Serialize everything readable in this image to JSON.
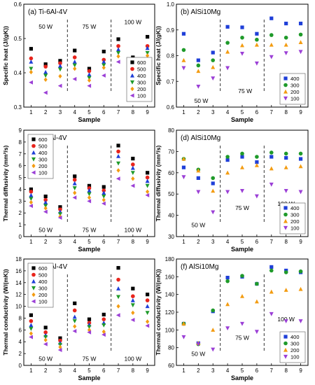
{
  "figure": {
    "description_free": true,
    "mark_colors": {
      "600": "#000000",
      "500": "#e8241c",
      "400": "#1f3fd8",
      "300": "#1f9a2a",
      "200": "#f39c12",
      "100": "#9b3fd6"
    },
    "mark_shapes": {
      "600": "square",
      "500": "circle",
      "400": "triangle-up",
      "300": "triangle-down",
      "200": "diamond",
      "100": "triangle-left"
    }
  },
  "chart_data": [
    {
      "id": "a",
      "type": "scatter",
      "title": "(a) Ti-6Al-4V",
      "xlabel": "Sample",
      "ylabel": "Specific heat (J/(gK))",
      "xlim": [
        0.5,
        9.5
      ],
      "ylim": [
        0.3,
        0.6
      ],
      "xticks": [
        1,
        2,
        3,
        4,
        5,
        6,
        7,
        8,
        9
      ],
      "yticks": [
        0.3,
        0.4,
        0.5,
        0.6
      ],
      "ytick_labels": [
        "0.3",
        "0.4",
        "0.5",
        "0.6"
      ],
      "legend_placement": "bottom-right",
      "power_labels": [
        {
          "text": "50 W",
          "x": 2.0,
          "y": 0.535
        },
        {
          "text": "75 W",
          "x": 5.0,
          "y": 0.535
        },
        {
          "text": "100 W",
          "x": 8.0,
          "y": 0.548
        }
      ],
      "dividers": [
        3.5,
        6.5
      ],
      "series": [
        {
          "name": "600",
          "shape": "square",
          "values": [
            0.47,
            0.425,
            0.435,
            0.465,
            0.412,
            0.462,
            0.498,
            0.445,
            0.505
          ]
        },
        {
          "name": "500",
          "shape": "circle",
          "values": [
            0.442,
            0.418,
            0.428,
            0.445,
            0.405,
            0.438,
            0.478,
            0.438,
            0.478
          ]
        },
        {
          "name": "400",
          "shape": "triangle-up",
          "values": [
            0.432,
            0.402,
            0.42,
            0.432,
            0.395,
            0.432,
            0.468,
            0.432,
            0.472
          ]
        },
        {
          "name": "300",
          "shape": "triangle-down",
          "values": [
            0.412,
            0.392,
            0.41,
            0.422,
            0.385,
            0.422,
            0.458,
            0.425,
            0.458
          ]
        },
        {
          "name": "200",
          "shape": "diamond",
          "values": [
            0.402,
            0.38,
            0.39,
            0.412,
            0.378,
            0.415,
            0.448,
            0.418,
            0.45
          ]
        },
        {
          "name": "100",
          "shape": "triangle-left",
          "values": [
            0.372,
            0.342,
            0.362,
            0.382,
            0.362,
            0.392,
            0.432,
            0.412,
            0.418
          ]
        }
      ]
    },
    {
      "id": "b",
      "type": "scatter",
      "title": "(b) AlSi10Mg",
      "xlabel": "Sample",
      "ylabel": "Specific heat (J/(gK))",
      "xlim": [
        0.5,
        9.5
      ],
      "ylim": [
        0.6,
        1.0
      ],
      "xticks": [
        1,
        2,
        3,
        4,
        5,
        6,
        7,
        8,
        9
      ],
      "yticks": [
        0.6,
        0.7,
        0.8,
        0.9,
        1.0
      ],
      "ytick_labels": [
        "0.6",
        "0.7",
        "0.8",
        "0.9",
        "1.0"
      ],
      "legend_placement": "bottom-right",
      "power_labels": [
        {
          "text": "50 W",
          "x": 2.2,
          "y": 0.625
        },
        {
          "text": "75 W",
          "x": 5.2,
          "y": 0.662
        },
        {
          "text": "100 W",
          "x": 8.2,
          "y": 0.715
        }
      ],
      "dividers": [
        3.5,
        6.5
      ],
      "series": [
        {
          "name": "400",
          "shape": "square",
          "values": [
            0.885,
            0.782,
            0.812,
            0.912,
            0.91,
            0.885,
            0.945,
            0.925,
            0.925
          ]
        },
        {
          "name": "300",
          "shape": "circle",
          "values": [
            0.822,
            0.762,
            0.782,
            0.85,
            0.87,
            0.862,
            0.88,
            0.87,
            0.882
          ]
        },
        {
          "name": "200",
          "shape": "triangle-up",
          "values": [
            0.782,
            0.74,
            0.755,
            0.815,
            0.84,
            0.842,
            0.842,
            0.842,
            0.852
          ]
        },
        {
          "name": "100",
          "shape": "triangle-down",
          "values": [
            0.752,
            0.68,
            0.712,
            0.752,
            0.808,
            0.77,
            0.795,
            0.81,
            0.815
          ]
        }
      ]
    },
    {
      "id": "c",
      "type": "scatter",
      "title": "(c) Ti-6Al-4V",
      "xlabel": "Sample",
      "ylabel": "Thermal diffusivity (mm²/s)",
      "xlim": [
        0.5,
        9.5
      ],
      "ylim": [
        0,
        9
      ],
      "xticks": [
        1,
        2,
        3,
        4,
        5,
        6,
        7,
        8,
        9
      ],
      "yticks": [
        0,
        1,
        2,
        3,
        4,
        5,
        6,
        7,
        8,
        9
      ],
      "ytick_labels": [
        "0",
        "1",
        "2",
        "3",
        "4",
        "5",
        "6",
        "7",
        "8",
        "9"
      ],
      "legend_placement": "top-left",
      "power_labels": [
        {
          "text": "50 W",
          "x": 2.0,
          "y": 0.55
        },
        {
          "text": "75 W",
          "x": 5.0,
          "y": 0.55
        },
        {
          "text": "100 W",
          "x": 8.0,
          "y": 0.55
        }
      ],
      "dividers": [
        3.5,
        6.5
      ],
      "series": [
        {
          "name": "600",
          "shape": "square",
          "values": [
            4.0,
            3.4,
            2.5,
            5.1,
            4.3,
            4.2,
            7.7,
            6.6,
            5.4
          ]
        },
        {
          "name": "500",
          "shape": "circle",
          "values": [
            3.8,
            3.1,
            2.3,
            4.8,
            4.1,
            3.9,
            7.2,
            6.1,
            5.0
          ]
        },
        {
          "name": "400",
          "shape": "triangle-up",
          "values": [
            3.5,
            2.9,
            2.1,
            4.5,
            3.9,
            3.7,
            6.8,
            5.8,
            4.7
          ]
        },
        {
          "name": "300",
          "shape": "triangle-down",
          "values": [
            3.2,
            2.6,
            1.9,
            4.1,
            3.6,
            3.4,
            6.2,
            5.4,
            4.3
          ]
        },
        {
          "name": "200",
          "shape": "diamond",
          "values": [
            2.9,
            2.4,
            1.7,
            3.7,
            3.3,
            3.1,
            5.6,
            4.9,
            3.8
          ]
        },
        {
          "name": "100",
          "shape": "triangle-left",
          "values": [
            2.6,
            2.1,
            1.6,
            3.3,
            3.0,
            2.8,
            4.9,
            4.3,
            3.5
          ]
        }
      ]
    },
    {
      "id": "d",
      "type": "scatter",
      "title": "(d) AlSi10Mg",
      "xlabel": "Sample",
      "ylabel": "Thermal diffusivity (mm²/s)",
      "xlim": [
        0.5,
        9.5
      ],
      "ylim": [
        30,
        80
      ],
      "xticks": [
        1,
        2,
        3,
        4,
        5,
        6,
        7,
        8,
        9
      ],
      "yticks": [
        30,
        40,
        50,
        60,
        70,
        80
      ],
      "ytick_labels": [
        "30",
        "40",
        "50",
        "60",
        "70",
        "80"
      ],
      "legend_placement": "bottom-right",
      "power_labels": [
        {
          "text": "50 W",
          "x": 2.0,
          "y": 35.5
        },
        {
          "text": "75 W",
          "x": 5.0,
          "y": 43.5
        },
        {
          "text": "100 W",
          "x": 8.0,
          "y": 45.5
        }
      ],
      "dividers": [
        3.5,
        6.5
      ],
      "series": [
        {
          "name": "400",
          "shape": "square",
          "values": [
            62.5,
            57.5,
            55.0,
            66.0,
            67.5,
            65.0,
            67.5,
            67.0,
            66.5
          ]
        },
        {
          "name": "300",
          "shape": "circle",
          "values": [
            66.5,
            61.5,
            57.5,
            67.5,
            69.0,
            67.5,
            69.5,
            69.0,
            69.0
          ]
        },
        {
          "name": "200",
          "shape": "triangle-up",
          "values": [
            66.5,
            61.0,
            51.5,
            60.0,
            62.5,
            63.5,
            62.0,
            62.5,
            63.0
          ]
        },
        {
          "name": "100",
          "shape": "triangle-down",
          "values": [
            58.0,
            51.0,
            41.5,
            51.0,
            51.5,
            49.0,
            54.5,
            51.5,
            51.0
          ]
        }
      ]
    },
    {
      "id": "e",
      "type": "scatter",
      "title": "(e) Ti-6Al-4V",
      "xlabel": "Sample",
      "ylabel": "Thermal conductivity (W/(mK))",
      "xlim": [
        0.5,
        9.5
      ],
      "ylim": [
        0,
        18
      ],
      "xticks": [
        1,
        2,
        3,
        4,
        5,
        6,
        7,
        8,
        9
      ],
      "yticks": [
        0,
        2,
        4,
        6,
        8,
        10,
        12,
        14,
        16,
        18
      ],
      "ytick_labels": [
        "0",
        "2",
        "4",
        "6",
        "8",
        "10",
        "12",
        "14",
        "16",
        "18"
      ],
      "legend_placement": "top-left",
      "power_labels": [
        {
          "text": "50 W",
          "x": 2.0,
          "y": 1.1
        },
        {
          "text": "75 W",
          "x": 5.0,
          "y": 1.1
        },
        {
          "text": "100 W",
          "x": 8.0,
          "y": 1.1
        }
      ],
      "dividers": [
        3.5,
        6.5
      ],
      "series": [
        {
          "name": "600",
          "shape": "square",
          "values": [
            8.5,
            6.4,
            4.6,
            10.5,
            7.8,
            8.6,
            16.5,
            13.0,
            12.0
          ]
        },
        {
          "name": "500",
          "shape": "circle",
          "values": [
            7.5,
            5.6,
            4.2,
            9.3,
            7.2,
            7.8,
            14.5,
            11.7,
            11.0
          ]
        },
        {
          "name": "400",
          "shape": "triangle-up",
          "values": [
            6.8,
            5.1,
            3.8,
            8.2,
            6.9,
            7.2,
            13.0,
            11.0,
            10.0
          ]
        },
        {
          "name": "300",
          "shape": "triangle-down",
          "values": [
            6.2,
            4.8,
            3.5,
            7.5,
            6.5,
            6.8,
            11.6,
            10.2,
            8.9
          ]
        },
        {
          "name": "200",
          "shape": "diamond",
          "values": [
            5.4,
            4.3,
            3.1,
            6.6,
            6.0,
            5.7,
            10.0,
            8.9,
            7.4
          ]
        },
        {
          "name": "100",
          "shape": "triangle-left",
          "values": [
            4.8,
            3.6,
            2.6,
            5.8,
            5.6,
            5.2,
            8.5,
            7.7,
            6.7
          ]
        }
      ]
    },
    {
      "id": "f",
      "type": "scatter",
      "title": "(f) AlSi10Mg",
      "xlabel": "Sample",
      "ylabel": "Thermal conductivity (W/(mK))",
      "xlim": [
        0.5,
        9.5
      ],
      "ylim": [
        60,
        180
      ],
      "xticks": [
        1,
        2,
        3,
        4,
        5,
        6,
        7,
        8,
        9
      ],
      "yticks": [
        60,
        80,
        100,
        120,
        140,
        160,
        180
      ],
      "ytick_labels": [
        "60",
        "80",
        "100",
        "120",
        "140",
        "160",
        "180"
      ],
      "legend_placement": "bottom-right",
      "power_labels": [
        {
          "text": "50 W",
          "x": 2.0,
          "y": 73
        },
        {
          "text": "75 W",
          "x": 5.0,
          "y": 91
        },
        {
          "text": "100 W",
          "x": 8.0,
          "y": 112
        }
      ],
      "dividers": [
        3.5,
        6.5
      ],
      "series": [
        {
          "name": "400",
          "shape": "square",
          "values": [
            107,
            85,
            121,
            159,
            160,
            152,
            171,
            167,
            165
          ]
        },
        {
          "name": "300",
          "shape": "circle",
          "values": [
            107,
            84,
            122,
            155,
            161,
            152,
            167,
            165,
            166
          ]
        },
        {
          "name": "200",
          "shape": "triangle-up",
          "values": [
            107,
            85,
            100,
            129,
            138,
            132,
            143,
            145,
            146
          ]
        },
        {
          "name": "100",
          "shape": "triangle-down",
          "values": [
            92,
            84,
            78,
            102,
            107,
            98,
            118,
            110,
            110
          ]
        }
      ]
    }
  ]
}
